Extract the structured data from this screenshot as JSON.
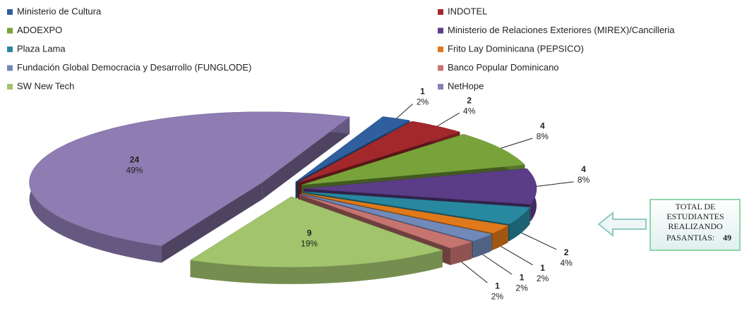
{
  "chart_data": {
    "type": "pie3d",
    "categories": [
      "Ministerio de Cultura",
      "INDOTEL",
      "ADOEXPO",
      "Ministerio de Relaciones Exteriores (MIREX)/Cancilleria",
      "Plaza Lama",
      "Frito Lay Dominicana (PEPSICO)",
      "Fundación Global Democracia y Desarrollo (FUNGLODE)",
      "Banco Popular Dominicano",
      "SW New Tech",
      "NetHope"
    ],
    "values": [
      1,
      2,
      4,
      4,
      2,
      1,
      1,
      1,
      9,
      24
    ],
    "percent_labels": [
      "2%",
      "4%",
      "8%",
      "8%",
      "4%",
      "2%",
      "2%",
      "2%",
      "19%",
      "49%"
    ],
    "colors": [
      "#2f5f9f",
      "#a3282b",
      "#78a33a",
      "#5b3c87",
      "#27889f",
      "#e0791b",
      "#7089b8",
      "#c67470",
      "#a2c46c",
      "#8e7cb3"
    ],
    "annotation": {
      "text": [
        "TOTAL DE",
        "ESTUDIANTES",
        "REALIZANDO",
        "PASANTIAS:"
      ],
      "value": "49"
    }
  }
}
